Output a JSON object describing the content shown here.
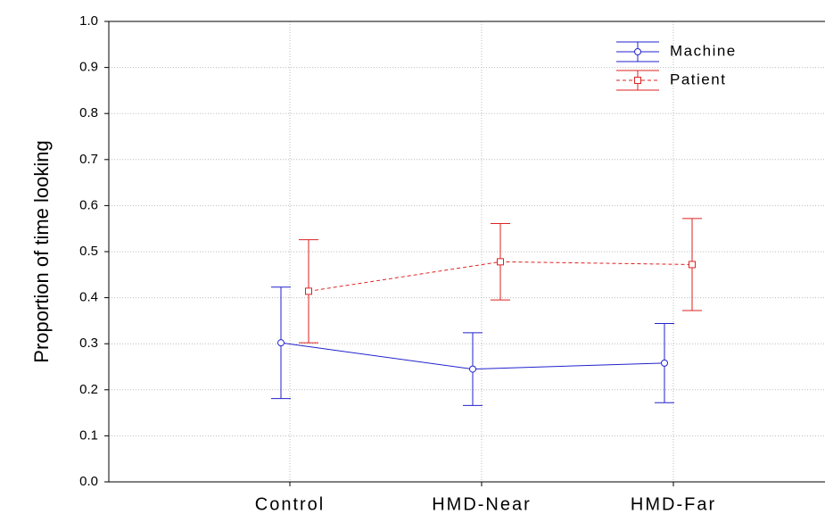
{
  "chart_data": {
    "type": "line",
    "y_label": "Proportion of time looking",
    "categories": [
      "Control",
      "HMD-Near",
      "HMD-Far"
    ],
    "series": [
      {
        "name": "Machine",
        "color": "#2222cc",
        "marker": "circle",
        "dashed": false,
        "values": [
          0.302,
          0.245,
          0.258
        ],
        "errors": [
          0.121,
          0.079,
          0.086
        ]
      },
      {
        "name": "Patient",
        "color": "#dd2222",
        "marker": "square",
        "dashed": true,
        "values": [
          0.414,
          0.478,
          0.472
        ],
        "errors": [
          0.112,
          0.083,
          0.1
        ]
      }
    ],
    "ylim": [
      0,
      1
    ],
    "yticks": [
      {
        "value": 0,
        "label": "0.0"
      },
      0.1,
      0.2,
      0.3,
      0.4,
      0.5,
      0.6,
      0.7,
      0.8,
      0.9,
      {
        "value": 1,
        "label": "1.0"
      }
    ],
    "grid": true,
    "legend": "top-right"
  }
}
